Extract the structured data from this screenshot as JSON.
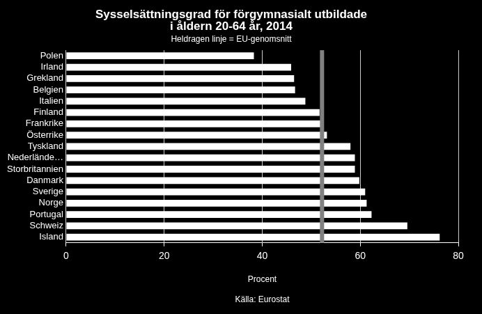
{
  "chart_data": {
    "type": "bar",
    "orientation": "horizontal",
    "title": [
      "Sysselsättningsgrad för förgymnasialt utbildade",
      "i åldern 20-64 år, 2014"
    ],
    "subtitle": "Heldragen linje = EU-genomsnitt",
    "categories": [
      "Polen",
      "Irland",
      "Grekland",
      "Belgien",
      "Italien",
      "Finland",
      "Frankrike",
      "Österrike",
      "Tyskland",
      "Nederlände…",
      "Storbritannien",
      "Danmark",
      "Sverige",
      "Norge",
      "Portugal",
      "Schweiz",
      "Island"
    ],
    "values": [
      38.3,
      45.9,
      46.5,
      46.7,
      48.8,
      51.7,
      52.3,
      53.2,
      58.0,
      58.9,
      58.9,
      59.8,
      61.0,
      61.3,
      62.3,
      69.6,
      76.2
    ],
    "color": "#ffffff",
    "eu_average": 52.2,
    "xlim": [
      0,
      80
    ],
    "xticks": [
      0,
      20,
      40,
      60,
      80
    ],
    "x_label": "Procent",
    "source": "Källa: Eurostat",
    "grid": true
  }
}
